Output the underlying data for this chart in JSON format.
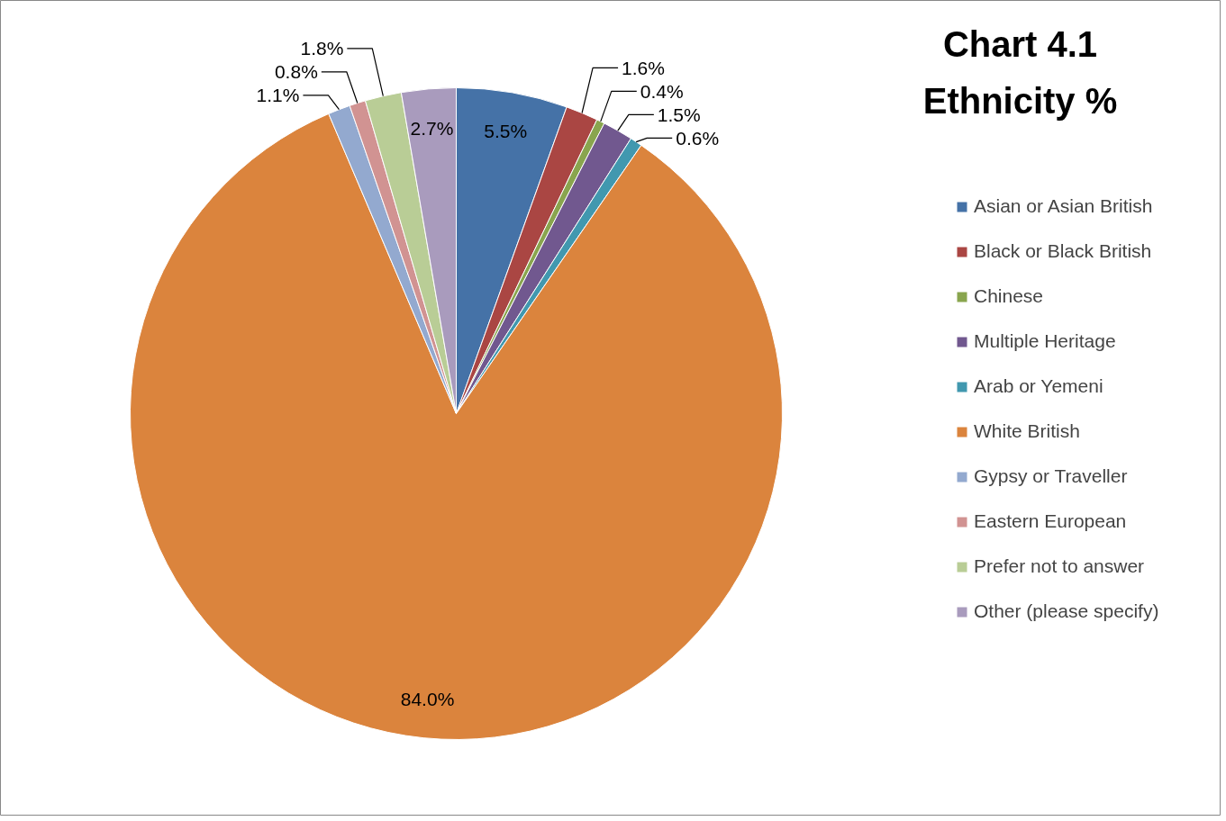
{
  "chart_data": {
    "type": "pie",
    "title": "Chart 4.1\nEthnicity %",
    "categories": [
      "Asian or Asian British",
      "Black or Black British",
      "Chinese",
      "Multiple Heritage",
      "Arab or Yemeni",
      "White British",
      "Gypsy or Traveller",
      "Eastern European",
      "Prefer not to answer",
      "Other (please specify)"
    ],
    "values": [
      5.5,
      1.6,
      0.4,
      1.5,
      0.6,
      84.0,
      1.1,
      0.8,
      1.8,
      2.7
    ],
    "colors": [
      "#4572a7",
      "#aa4643",
      "#89a54e",
      "#71588f",
      "#4198af",
      "#db843d",
      "#93a9cf",
      "#d19392",
      "#b9cd96",
      "#a99bbd"
    ],
    "value_labels": [
      "5.5%",
      "1.6%",
      "0.4%",
      "1.5%",
      "0.6%",
      "84.0%",
      "1.1%",
      "0.8%",
      "1.8%",
      "2.7%"
    ],
    "legend": "right"
  }
}
